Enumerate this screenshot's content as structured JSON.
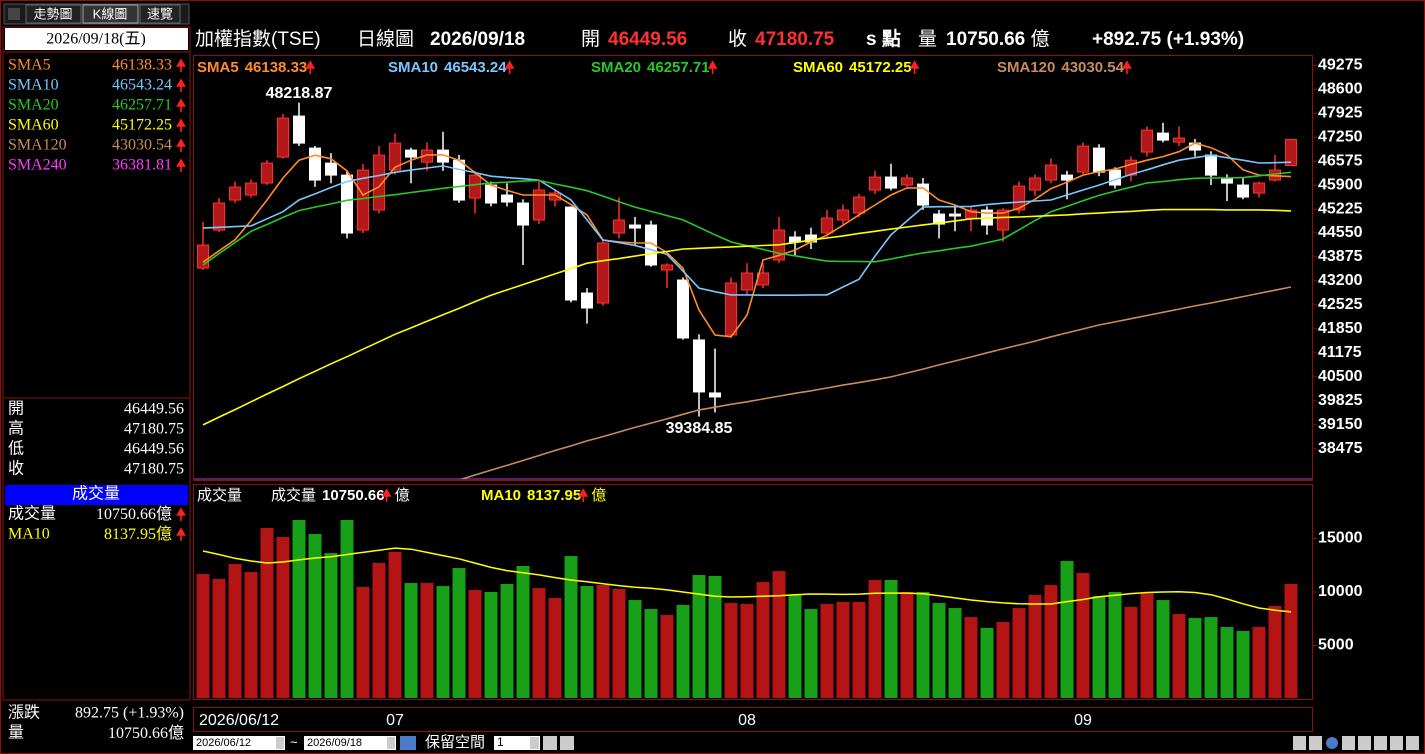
{
  "tabs": [
    "走勢圖",
    "K線圖",
    "速覽"
  ],
  "header": {
    "symbol": "加權指數(TSE)",
    "period": "日線圖",
    "date": "2026/09/18",
    "open_label": "開",
    "close_label": "收",
    "unit_label": "s 點",
    "volume_label": "量",
    "change": "+892.75 (+1.93%)"
  },
  "side_panel": {
    "date": "2026/09/18(五)",
    "sma240": {
      "name": "SMA240",
      "value": "36381.81",
      "color": "#ff3cff"
    },
    "ohlc_labels": [
      "開",
      "高",
      "低",
      "收"
    ],
    "volume_title": "成交量",
    "volume_row_label": "成交量",
    "change_label": "漲跌",
    "change": "892.75 (+1.93%)",
    "volume_label": "量"
  },
  "footer": {
    "date_from": "2026/06/12",
    "separator": "~",
    "date_to": "2026/09/18",
    "reserve_label": "保留空間",
    "reserve_value": "1"
  },
  "chart_data": [
    {
      "type": "candlestick",
      "categories": [
        "2026/06/12",
        null,
        null,
        null,
        null,
        null,
        null,
        null,
        null,
        null,
        null,
        null,
        "07",
        null,
        null,
        null,
        null,
        null,
        null,
        null,
        null,
        null,
        null,
        null,
        null,
        null,
        null,
        null,
        null,
        null,
        null,
        null,
        null,
        null,
        "08",
        null,
        null,
        null,
        null,
        null,
        null,
        null,
        null,
        null,
        null,
        null,
        null,
        null,
        null,
        null,
        null,
        null,
        null,
        null,
        null,
        "09",
        null,
        null,
        null,
        null,
        null,
        null,
        null,
        null,
        null,
        null,
        null,
        null,
        null
      ],
      "open": [
        43566,
        44634,
        45478,
        45619,
        45956,
        46687,
        47841,
        46940,
        46518,
        46180,
        44634,
        45197,
        46322,
        46884,
        46546,
        46884,
        46600,
        45534,
        45900,
        45619,
        45394,
        44916,
        45478,
        45281,
        42862,
        42580,
        44550,
        44775,
        44775,
        43509,
        43228,
        41541,
        40050,
        41681,
        42947,
        43087,
        43790,
        44437,
        44494,
        44550,
        44916,
        45112,
        45759,
        46125,
        45900,
        45928,
        45084,
        45084,
        44972,
        45197,
        44634,
        45197,
        45759,
        46040,
        46180,
        46265,
        46940,
        46322,
        46180,
        46828,
        47362,
        47109,
        47081,
        46744,
        46100,
        45900,
        45675,
        46040,
        46449.56
      ],
      "high": [
        44860,
        45534,
        46000,
        46050,
        46600,
        47900,
        48218.87,
        47000,
        46800,
        46300,
        46500,
        47000,
        47350,
        46950,
        47100,
        47400,
        46750,
        46300,
        46000,
        45950,
        45500,
        46000,
        45750,
        45300,
        43000,
        44350,
        45550,
        45000,
        44900,
        43700,
        43300,
        41700,
        41300,
        43300,
        43700,
        43700,
        45000,
        44600,
        44700,
        45200,
        45350,
        45650,
        46300,
        46500,
        46200,
        46100,
        45200,
        45350,
        45300,
        45300,
        45250,
        46000,
        46200,
        46650,
        46300,
        47100,
        47050,
        46400,
        46700,
        47550,
        47650,
        47550,
        47200,
        46850,
        46200,
        46100,
        46000,
        46750,
        47180.75
      ],
      "low": [
        43509,
        44578,
        45400,
        45550,
        45900,
        46650,
        47000,
        45850,
        45950,
        44400,
        44550,
        45100,
        46200,
        45950,
        46300,
        46300,
        45400,
        45100,
        45300,
        45300,
        43650,
        44800,
        45300,
        42600,
        42000,
        42500,
        44400,
        44200,
        43600,
        43000,
        41550,
        39384.85,
        39500,
        41600,
        42800,
        43000,
        43700,
        43900,
        44100,
        44450,
        44800,
        45000,
        45650,
        45750,
        45850,
        45200,
        44400,
        44600,
        44600,
        44500,
        44300,
        45100,
        45600,
        45950,
        45500,
        46200,
        46150,
        45800,
        46000,
        46700,
        47100,
        47000,
        46700,
        45900,
        45450,
        45500,
        45550,
        46000,
        46449.56
      ],
      "close": [
        44213,
        45394,
        45844,
        45956,
        46518,
        47784,
        47081,
        46040,
        46180,
        44550,
        46322,
        46744,
        47081,
        46687,
        46884,
        46546,
        45478,
        46180,
        45394,
        45422,
        44775,
        45760,
        45675,
        42666,
        42440,
        44270,
        44916,
        44690,
        43650,
        43650,
        41597,
        40078,
        39937,
        43144,
        43425,
        43425,
        44634,
        44297,
        44297,
        44972,
        45197,
        45562,
        46125,
        45815,
        46100,
        45337,
        44803,
        45028,
        45197,
        44775,
        45197,
        45872,
        46100,
        46462,
        46040,
        46997,
        46265,
        45900,
        46600,
        47447,
        47165,
        47222,
        46884,
        46180,
        45956,
        45562,
        45956,
        46322,
        47180.75
      ],
      "up_color": "#b41818",
      "down_color": "#ffffff",
      "series": [
        {
          "name": "SMA5",
          "color": "#ff8c28",
          "values": [
            43730,
            44050,
            44360,
            44900,
            45480,
            46100,
            46600,
            46740,
            46640,
            46300,
            45620,
            45850,
            46400,
            46600,
            46750,
            46750,
            46600,
            46250,
            45900,
            45750,
            45620,
            45620,
            45620,
            45350,
            45060,
            44350,
            44300,
            44270,
            44270,
            44000,
            43560,
            42380,
            41680,
            41630,
            42240,
            43790,
            43920,
            44070,
            44300,
            44490,
            44770,
            45060,
            45340,
            45620,
            45820,
            45820,
            45480,
            45340,
            45150,
            45110,
            45110,
            45250,
            45500,
            45800,
            45980,
            46180,
            46280,
            46350,
            46480,
            46600,
            46700,
            46840,
            47080,
            46950,
            46750,
            46330,
            46180,
            46160,
            46138.33
          ]
        },
        {
          "name": "SMA10",
          "color": "#78c8ff",
          "values": [
            44690,
            44710,
            44730,
            44750,
            44950,
            45150,
            45480,
            45650,
            45830,
            46000,
            46090,
            46170,
            46260,
            46320,
            46380,
            46440,
            46340,
            46250,
            46150,
            46110,
            46080,
            46040,
            45760,
            45480,
            44920,
            44350,
            44280,
            44200,
            44080,
            43950,
            43480,
            43000,
            42900,
            42810,
            42810,
            42800,
            42800,
            42800,
            42810,
            42810,
            43030,
            43250,
            43900,
            44500,
            44890,
            45280,
            45290,
            45290,
            45300,
            45350,
            45390,
            45420,
            45450,
            45480,
            45620,
            45760,
            45900,
            46050,
            46200,
            46330,
            46470,
            46600,
            46670,
            46740,
            46670,
            46600,
            46520,
            46530,
            46543.24
          ]
        },
        {
          "name": "SMA20",
          "color": "#28c828",
          "values": [
            43650,
            43970,
            44280,
            44600,
            44790,
            44990,
            45180,
            45280,
            45370,
            45470,
            45520,
            45580,
            45630,
            45690,
            45750,
            45810,
            45860,
            45910,
            45960,
            45980,
            46010,
            46030,
            45930,
            45840,
            45740,
            45590,
            45430,
            45280,
            45160,
            45040,
            44920,
            44710,
            44500,
            44300,
            44190,
            44090,
            43980,
            43910,
            43830,
            43760,
            43750,
            43750,
            43740,
            43820,
            43910,
            43990,
            44050,
            44120,
            44180,
            44280,
            44380,
            44640,
            44900,
            45150,
            45300,
            45460,
            45610,
            45730,
            45840,
            45960,
            46000,
            46050,
            46090,
            46100,
            46100,
            46110,
            46160,
            46210,
            46257.71
          ]
        },
        {
          "name": "SMA60",
          "color": "#ffff00",
          "values": [
            39150,
            39370,
            39580,
            39800,
            40020,
            40230,
            40450,
            40660,
            40870,
            41070,
            41280,
            41490,
            41700,
            41880,
            42070,
            42250,
            42430,
            42620,
            42800,
            42950,
            43100,
            43250,
            43400,
            43550,
            43700,
            43770,
            43830,
            43900,
            43970,
            44030,
            44100,
            44120,
            44140,
            44160,
            44180,
            44200,
            44220,
            44280,
            44350,
            44410,
            44470,
            44540,
            44600,
            44660,
            44720,
            44780,
            44830,
            44890,
            44950,
            44970,
            44990,
            45000,
            45020,
            45040,
            45060,
            45090,
            45110,
            45140,
            45160,
            45190,
            45210,
            45210,
            45210,
            45210,
            45200,
            45200,
            45200,
            45190,
            45172.25
          ]
        },
        {
          "name": "SMA120",
          "color": "#c88c5a",
          "values": [
            null,
            null,
            null,
            null,
            null,
            null,
            null,
            null,
            null,
            null,
            null,
            null,
            null,
            null,
            null,
            null,
            37600,
            37740,
            37880,
            38010,
            38150,
            38290,
            38430,
            38560,
            38700,
            38820,
            38950,
            39080,
            39200,
            39320,
            39450,
            39572,
            39650,
            39730,
            39800,
            39880,
            39960,
            40040,
            40110,
            40190,
            40270,
            40340,
            40420,
            40500,
            40610,
            40720,
            40840,
            40950,
            41060,
            41180,
            41290,
            41400,
            41510,
            41630,
            41740,
            41850,
            41962,
            42050,
            42140,
            42230,
            42320,
            42410,
            42500,
            42580,
            42670,
            42760,
            42850,
            42940,
            43030.54
          ]
        }
      ],
      "ylim": [
        37600,
        49560
      ],
      "yticks": [
        38475,
        39150,
        39825,
        40500,
        41175,
        41850,
        42525,
        43200,
        43875,
        44550,
        45225,
        45900,
        46575,
        47250,
        47925,
        48600,
        49275
      ]
    },
    {
      "type": "bar",
      "title": "成交量",
      "name": "成交量",
      "unit": "億",
      "values": [
        11680,
        11215,
        12617,
        11870,
        15980,
        15140,
        16730,
        15420,
        13640,
        16730,
        10470,
        12710,
        13740,
        10840,
        10840,
        10560,
        12240,
        10190,
        10000,
        10750,
        12430,
        10370,
        9440,
        13360,
        10560,
        10650,
        10280,
        9250,
        8410,
        7850,
        8790,
        11590,
        11500,
        8970,
        8880,
        10930,
        11960,
        9720,
        8410,
        8880,
        9070,
        9070,
        11120,
        11120,
        10000,
        10000,
        8970,
        8500,
        7660,
        6640,
        7200,
        8500,
        9720,
        10650,
        12900,
        11780,
        9630,
        10000,
        8600,
        9910,
        9250,
        7940,
        7570,
        7660,
        6730,
        6360,
        6730,
        8690,
        10750.66
      ],
      "up_color": "#b41414",
      "down_color": "#18a018",
      "series": [
        {
          "name": "MA10",
          "color": "#ffff00",
          "values": [
            13830,
            13500,
            13150,
            12900,
            12710,
            12800,
            13000,
            13180,
            13300,
            13500,
            13700,
            13900,
            14100,
            14000,
            13700,
            13400,
            13100,
            12700,
            12300,
            12000,
            11800,
            11600,
            11350,
            11120,
            10950,
            10780,
            10600,
            10450,
            10350,
            10200,
            10000,
            9800,
            9600,
            9530,
            9550,
            9600,
            9650,
            9750,
            9810,
            9800,
            9780,
            9800,
            9880,
            9900,
            9900,
            9830,
            9650,
            9450,
            9250,
            9100,
            8980,
            8900,
            8880,
            8880,
            9100,
            9300,
            9550,
            9700,
            9850,
            9950,
            10000,
            10020,
            9950,
            9750,
            9350,
            8900,
            8500,
            8300,
            8137.95
          ]
        }
      ],
      "ylim": [
        0,
        20000
      ],
      "yticks": [
        5000,
        10000,
        15000
      ]
    }
  ]
}
